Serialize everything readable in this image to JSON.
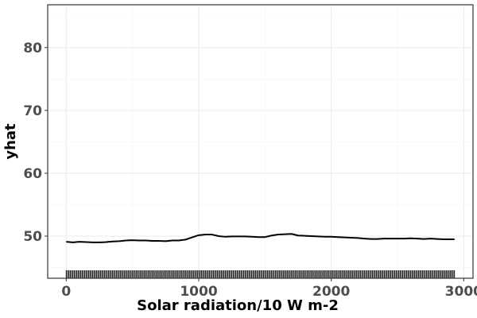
{
  "chart_data": {
    "type": "line",
    "title": "",
    "xlabel": "Solar radiation/10 W m-2",
    "ylabel": "yhat",
    "xlim": [
      -140,
      3070
    ],
    "ylim": [
      43.3,
      86.8
    ],
    "x_ticks": [
      0,
      1000,
      2000,
      3000
    ],
    "y_ticks": [
      50,
      60,
      70,
      80
    ],
    "grid": true,
    "legend": "none",
    "series": [
      {
        "color": "#000000",
        "x": [
          0,
          50,
          100,
          150,
          200,
          250,
          300,
          350,
          400,
          450,
          500,
          550,
          600,
          650,
          700,
          750,
          800,
          850,
          900,
          950,
          1000,
          1050,
          1100,
          1150,
          1200,
          1250,
          1300,
          1350,
          1400,
          1450,
          1500,
          1550,
          1600,
          1650,
          1700,
          1750,
          1800,
          1850,
          1900,
          1950,
          2000,
          2050,
          2100,
          2150,
          2200,
          2250,
          2300,
          2350,
          2400,
          2450,
          2500,
          2550,
          2600,
          2650,
          2700,
          2750,
          2800,
          2850,
          2900,
          2930
        ],
        "y": [
          49.1,
          49.0,
          49.1,
          49.05,
          49.0,
          49.0,
          49.05,
          49.15,
          49.2,
          49.3,
          49.35,
          49.3,
          49.3,
          49.25,
          49.25,
          49.2,
          49.3,
          49.3,
          49.45,
          49.8,
          50.15,
          50.25,
          50.25,
          50.0,
          49.9,
          49.95,
          49.95,
          49.95,
          49.9,
          49.85,
          49.85,
          50.1,
          50.25,
          50.3,
          50.35,
          50.1,
          50.05,
          50.0,
          49.95,
          49.9,
          49.9,
          49.85,
          49.8,
          49.75,
          49.7,
          49.6,
          49.55,
          49.55,
          49.6,
          49.6,
          49.6,
          49.6,
          49.65,
          49.6,
          49.55,
          49.6,
          49.55,
          49.5,
          49.5,
          49.5
        ]
      }
    ],
    "rug": {
      "x_start": 0,
      "x_end": 2930,
      "step": 10,
      "color": "#000000"
    }
  }
}
